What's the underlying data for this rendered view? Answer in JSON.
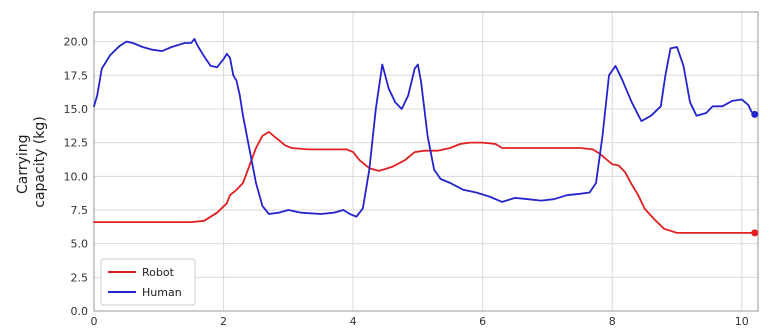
{
  "chart_data": {
    "type": "line",
    "title": "",
    "xlabel": "",
    "ylabel_lines": [
      "Carrying",
      "capacity (kg)"
    ],
    "xlim": [
      0,
      10.25
    ],
    "ylim": [
      0,
      22.2
    ],
    "grid": true,
    "legend_position": "bottom-left",
    "x_ticks": [
      0,
      2,
      4,
      6,
      8,
      10
    ],
    "x_tick_labels": [
      "0",
      "2",
      "4",
      "6",
      "8",
      "10"
    ],
    "y_ticks": [
      0,
      2.5,
      5,
      7.5,
      10,
      12.5,
      15,
      17.5,
      20
    ],
    "y_tick_labels": [
      "0.0",
      "2.5",
      "5.0",
      "7.5",
      "10.0",
      "12.5",
      "15.0",
      "17.5",
      "20.0"
    ],
    "series": [
      {
        "name": "Robot",
        "color": "#e02020",
        "end_marker": true,
        "points": [
          [
            0.0,
            6.6
          ],
          [
            0.5,
            6.6
          ],
          [
            1.0,
            6.6
          ],
          [
            1.5,
            6.6
          ],
          [
            1.7,
            6.7
          ],
          [
            1.9,
            7.3
          ],
          [
            2.05,
            8.0
          ],
          [
            2.1,
            8.6
          ],
          [
            2.2,
            9.0
          ],
          [
            2.3,
            9.5
          ],
          [
            2.4,
            10.8
          ],
          [
            2.5,
            12.1
          ],
          [
            2.6,
            13.0
          ],
          [
            2.7,
            13.3
          ],
          [
            2.8,
            12.9
          ],
          [
            2.95,
            12.3
          ],
          [
            3.05,
            12.1
          ],
          [
            3.3,
            12.0
          ],
          [
            3.5,
            12.0
          ],
          [
            3.75,
            12.0
          ],
          [
            3.9,
            12.0
          ],
          [
            4.0,
            11.8
          ],
          [
            4.1,
            11.2
          ],
          [
            4.25,
            10.6
          ],
          [
            4.4,
            10.4
          ],
          [
            4.6,
            10.7
          ],
          [
            4.8,
            11.2
          ],
          [
            4.95,
            11.8
          ],
          [
            5.1,
            11.9
          ],
          [
            5.3,
            11.9
          ],
          [
            5.5,
            12.1
          ],
          [
            5.65,
            12.4
          ],
          [
            5.8,
            12.5
          ],
          [
            6.0,
            12.5
          ],
          [
            6.2,
            12.4
          ],
          [
            6.3,
            12.1
          ],
          [
            6.5,
            12.1
          ],
          [
            7.0,
            12.1
          ],
          [
            7.5,
            12.1
          ],
          [
            7.7,
            12.0
          ],
          [
            7.8,
            11.7
          ],
          [
            7.9,
            11.3
          ],
          [
            8.0,
            10.9
          ],
          [
            8.1,
            10.8
          ],
          [
            8.2,
            10.3
          ],
          [
            8.3,
            9.4
          ],
          [
            8.4,
            8.6
          ],
          [
            8.5,
            7.6
          ],
          [
            8.65,
            6.8
          ],
          [
            8.8,
            6.1
          ],
          [
            9.0,
            5.8
          ],
          [
            9.5,
            5.8
          ],
          [
            10.0,
            5.8
          ],
          [
            10.2,
            5.8
          ]
        ]
      },
      {
        "name": "Human",
        "color": "#2424cc",
        "end_marker": true,
        "points": [
          [
            0.0,
            15.2
          ],
          [
            0.05,
            16.0
          ],
          [
            0.12,
            18.0
          ],
          [
            0.25,
            19.0
          ],
          [
            0.4,
            19.7
          ],
          [
            0.5,
            20.0
          ],
          [
            0.6,
            19.9
          ],
          [
            0.75,
            19.6
          ],
          [
            0.9,
            19.4
          ],
          [
            1.05,
            19.3
          ],
          [
            1.2,
            19.6
          ],
          [
            1.4,
            19.9
          ],
          [
            1.5,
            19.9
          ],
          [
            1.55,
            20.2
          ],
          [
            1.6,
            19.7
          ],
          [
            1.7,
            18.9
          ],
          [
            1.8,
            18.2
          ],
          [
            1.9,
            18.1
          ],
          [
            2.0,
            18.7
          ],
          [
            2.05,
            19.1
          ],
          [
            2.1,
            18.8
          ],
          [
            2.15,
            17.5
          ],
          [
            2.2,
            17.1
          ],
          [
            2.25,
            16.0
          ],
          [
            2.3,
            14.5
          ],
          [
            2.4,
            12.0
          ],
          [
            2.5,
            9.5
          ],
          [
            2.6,
            7.8
          ],
          [
            2.7,
            7.2
          ],
          [
            2.85,
            7.3
          ],
          [
            3.0,
            7.5
          ],
          [
            3.2,
            7.3
          ],
          [
            3.5,
            7.2
          ],
          [
            3.7,
            7.3
          ],
          [
            3.85,
            7.5
          ],
          [
            3.95,
            7.2
          ],
          [
            4.05,
            7.0
          ],
          [
            4.15,
            7.6
          ],
          [
            4.25,
            10.5
          ],
          [
            4.35,
            15.0
          ],
          [
            4.45,
            18.3
          ],
          [
            4.55,
            16.5
          ],
          [
            4.65,
            15.5
          ],
          [
            4.75,
            15.0
          ],
          [
            4.85,
            16.0
          ],
          [
            4.95,
            18.0
          ],
          [
            5.0,
            18.3
          ],
          [
            5.05,
            17.0
          ],
          [
            5.15,
            13.0
          ],
          [
            5.25,
            10.5
          ],
          [
            5.35,
            9.8
          ],
          [
            5.5,
            9.5
          ],
          [
            5.7,
            9.0
          ],
          [
            5.9,
            8.8
          ],
          [
            6.1,
            8.5
          ],
          [
            6.3,
            8.1
          ],
          [
            6.5,
            8.4
          ],
          [
            6.7,
            8.3
          ],
          [
            6.9,
            8.2
          ],
          [
            7.1,
            8.3
          ],
          [
            7.3,
            8.6
          ],
          [
            7.5,
            8.7
          ],
          [
            7.65,
            8.8
          ],
          [
            7.75,
            9.5
          ],
          [
            7.85,
            13.0
          ],
          [
            7.95,
            17.5
          ],
          [
            8.05,
            18.2
          ],
          [
            8.15,
            17.2
          ],
          [
            8.3,
            15.5
          ],
          [
            8.45,
            14.1
          ],
          [
            8.6,
            14.5
          ],
          [
            8.75,
            15.2
          ],
          [
            8.82,
            17.5
          ],
          [
            8.9,
            19.5
          ],
          [
            9.0,
            19.6
          ],
          [
            9.1,
            18.2
          ],
          [
            9.2,
            15.5
          ],
          [
            9.3,
            14.5
          ],
          [
            9.45,
            14.7
          ],
          [
            9.55,
            15.2
          ],
          [
            9.7,
            15.2
          ],
          [
            9.85,
            15.6
          ],
          [
            10.0,
            15.7
          ],
          [
            10.1,
            15.3
          ],
          [
            10.15,
            14.8
          ],
          [
            10.2,
            14.6
          ]
        ]
      }
    ]
  }
}
